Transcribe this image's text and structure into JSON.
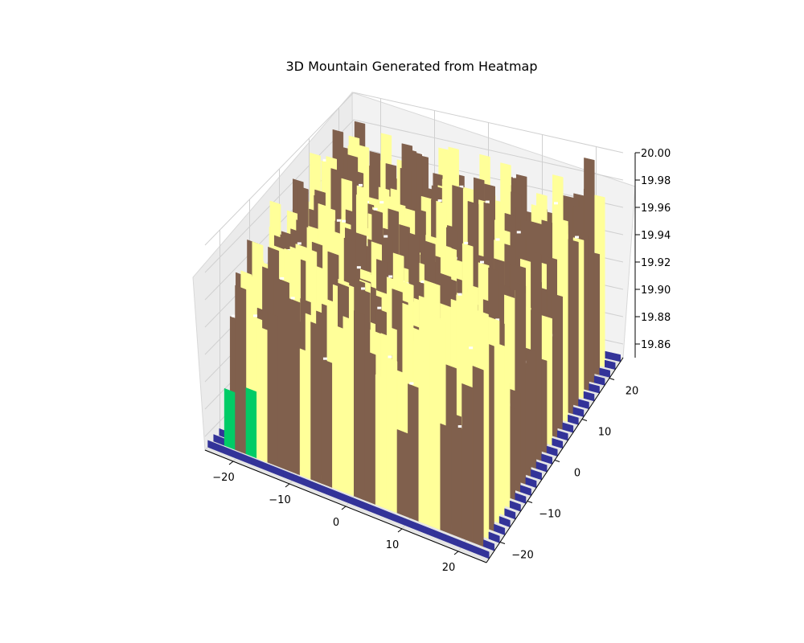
{
  "chart_data": {
    "type": "surface",
    "title": "3D Mountain Generated from Heatmap",
    "xlabel": "",
    "ylabel": "",
    "zlabel": "",
    "x_ticks": [
      -20,
      -10,
      0,
      10,
      20
    ],
    "y_ticks": [
      -20,
      -10,
      0,
      10,
      20
    ],
    "z_ticks": [
      19.86,
      19.88,
      19.9,
      19.92,
      19.94,
      19.96,
      19.98,
      20.0
    ],
    "x_tick_labels": [
      "−20",
      "−10",
      "0",
      "10",
      "20"
    ],
    "y_tick_labels": [
      "−20",
      "−10",
      "0",
      "10",
      "20"
    ],
    "z_tick_labels": [
      "19.86",
      "19.88",
      "19.90",
      "19.92",
      "19.94",
      "19.96",
      "19.98",
      "20.00"
    ],
    "xlim": [
      -25,
      25
    ],
    "ylim": [
      -25,
      25
    ],
    "zlim": [
      19.85,
      20.0
    ],
    "grid": true,
    "colormap": "terrain",
    "colors": [
      "#333399",
      "#00cc66",
      "#ffff99",
      "#80604d",
      "#ffffff"
    ]
  }
}
